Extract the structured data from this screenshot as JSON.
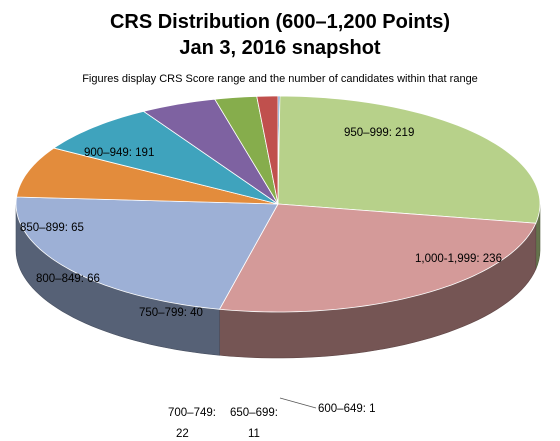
{
  "chart_data": {
    "type": "pie",
    "title": "CRS Distribution (600–1,200 Points)",
    "title_line2": "Jan 3, 2016 snapshot",
    "subtitle": "Figures display CRS Score range and the number of candidates within that range",
    "slices": [
      {
        "name": "600–649",
        "value": 1,
        "label": "600–649: 1",
        "color": "#4F81BD"
      },
      {
        "name": "1,000-1,999",
        "value": 236,
        "label": "1,000-1,999: 236",
        "color": "#B7D18A"
      },
      {
        "name": "950–999",
        "value": 219,
        "label": "950–999: 219",
        "color": "#D49A99"
      },
      {
        "name": "900–949",
        "value": 191,
        "label": "900–949: 191",
        "color": "#9DB0D6"
      },
      {
        "name": "850–899",
        "value": 65,
        "label": "850–899: 65",
        "color": "#E38C3C"
      },
      {
        "name": "800–849",
        "value": 66,
        "label": "800–849: 66",
        "color": "#3FA3BD"
      },
      {
        "name": "750–799",
        "value": 40,
        "label": "750–799: 40",
        "color": "#7E62A1"
      },
      {
        "name": "700–749",
        "value": 22,
        "label": "700–749:",
        "label2": "22",
        "color": "#86AD4C"
      },
      {
        "name": "650–699",
        "value": 11,
        "label": "650–699:",
        "label2": "11",
        "color": "#C0504D"
      }
    ]
  }
}
